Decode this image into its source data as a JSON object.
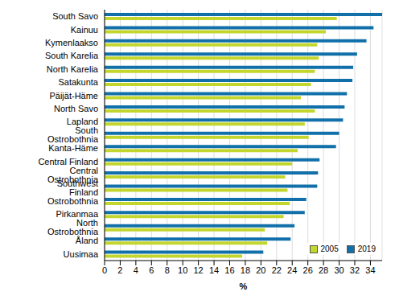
{
  "chart_data": {
    "type": "bar",
    "orientation": "horizontal",
    "x_label": "%",
    "categories": [
      "South Savo",
      "Kainuu",
      "Kymenlaakso",
      "South Karelia",
      "North Karelia",
      "Satakunta",
      "Päijät-Häme",
      "North Savo",
      "Lapland",
      "South Ostrobothnia",
      "Kanta-Häme",
      "Central Finland",
      "Central Ostrobothnia",
      "Southwest Finland",
      "Ostrobothnia",
      "Pirkanmaa",
      "North Ostrobothnia",
      "Åland",
      "Uusimaa"
    ],
    "series": [
      {
        "name": "2005",
        "color": "#c3d62e",
        "values": [
          29.7,
          28.3,
          27.2,
          27.4,
          26.9,
          26.4,
          25.1,
          26.9,
          25.6,
          26.1,
          24.7,
          24.0,
          23.1,
          23.4,
          23.7,
          22.9,
          20.5,
          20.8,
          17.6
        ]
      },
      {
        "name": "2019",
        "color": "#1170aa",
        "values": [
          35.5,
          34.4,
          33.5,
          32.3,
          31.8,
          31.7,
          31.0,
          30.7,
          30.5,
          30.0,
          29.6,
          27.5,
          27.3,
          27.2,
          25.8,
          25.6,
          24.3,
          23.8,
          20.3
        ]
      }
    ],
    "xlim": [
      0,
      35.5
    ],
    "xticks": [
      0,
      2,
      4,
      6,
      8,
      10,
      12,
      14,
      16,
      18,
      20,
      22,
      24,
      26,
      28,
      30,
      32,
      34
    ],
    "grid": true,
    "legend": "lower right"
  }
}
